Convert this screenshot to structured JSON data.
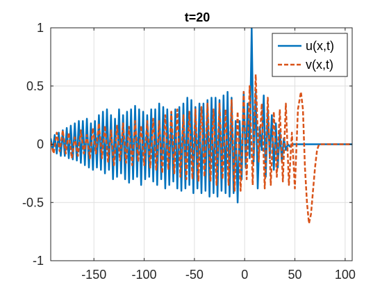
{
  "chart_data": {
    "type": "line",
    "title": "t=20",
    "xlabel": "",
    "ylabel": "",
    "xlim": [
      -193,
      107
    ],
    "ylim": [
      -1,
      1
    ],
    "xticks": [
      -150,
      -100,
      -50,
      0,
      50,
      100
    ],
    "yticks": [
      -1,
      -0.5,
      0,
      0.5,
      1
    ],
    "xtick_labels": [
      "-150",
      "-100",
      "-50",
      "0",
      "50",
      "100"
    ],
    "ytick_labels": [
      "-1",
      "-0.5",
      "0",
      "0.5",
      "1"
    ],
    "grid": true,
    "legend_position": "top-right",
    "series": [
      {
        "name": "u(x,t)",
        "color": "#0072BD",
        "style": "solid",
        "points": [
          [
            -193,
            0.05
          ],
          [
            -191,
            -0.05
          ],
          [
            -189,
            0.08
          ],
          [
            -187,
            -0.08
          ],
          [
            -185,
            0.1
          ],
          [
            -183,
            -0.1
          ],
          [
            -181,
            0.12
          ],
          [
            -179,
            -0.1
          ],
          [
            -177,
            0.14
          ],
          [
            -175,
            -0.12
          ],
          [
            -173,
            0.16
          ],
          [
            -171,
            -0.13
          ],
          [
            -169,
            0.18
          ],
          [
            -167,
            -0.14
          ],
          [
            -165,
            0.2
          ],
          [
            -163,
            -0.16
          ],
          [
            -161,
            0.2
          ],
          [
            -159,
            -0.18
          ],
          [
            -157,
            0.22
          ],
          [
            -155,
            -0.2
          ],
          [
            -153,
            0.18
          ],
          [
            -151,
            -0.22
          ],
          [
            -149,
            0.2
          ],
          [
            -147,
            -0.2
          ],
          [
            -145,
            0.25
          ],
          [
            -143,
            -0.22
          ],
          [
            -141,
            0.28
          ],
          [
            -139,
            -0.25
          ],
          [
            -137,
            0.3
          ],
          [
            -135,
            -0.22
          ],
          [
            -133,
            0.25
          ],
          [
            -131,
            -0.3
          ],
          [
            -129,
            0.22
          ],
          [
            -127,
            -0.28
          ],
          [
            -125,
            0.3
          ],
          [
            -123,
            -0.25
          ],
          [
            -121,
            0.25
          ],
          [
            -119,
            -0.3
          ],
          [
            -117,
            0.28
          ],
          [
            -115,
            -0.33
          ],
          [
            -113,
            0.3
          ],
          [
            -111,
            -0.3
          ],
          [
            -109,
            0.33
          ],
          [
            -107,
            -0.28
          ],
          [
            -105,
            0.3
          ],
          [
            -103,
            -0.35
          ],
          [
            -101,
            0.28
          ],
          [
            -99,
            -0.3
          ],
          [
            -97,
            0.25
          ],
          [
            -95,
            -0.28
          ],
          [
            -93,
            0.3
          ],
          [
            -91,
            -0.32
          ],
          [
            -89,
            0.3
          ],
          [
            -87,
            -0.35
          ],
          [
            -85,
            0.35
          ],
          [
            -83,
            -0.3
          ],
          [
            -81,
            0.32
          ],
          [
            -79,
            -0.38
          ],
          [
            -77,
            0.3
          ],
          [
            -75,
            -0.35
          ],
          [
            -73,
            0.28
          ],
          [
            -71,
            -0.32
          ],
          [
            -69,
            0.3
          ],
          [
            -67,
            -0.38
          ],
          [
            -65,
            0.32
          ],
          [
            -63,
            -0.4
          ],
          [
            -61,
            0.35
          ],
          [
            -59,
            -0.38
          ],
          [
            -57,
            0.4
          ],
          [
            -55,
            -0.35
          ],
          [
            -53,
            0.38
          ],
          [
            -51,
            -0.42
          ],
          [
            -49,
            0.32
          ],
          [
            -47,
            -0.38
          ],
          [
            -45,
            0.35
          ],
          [
            -43,
            -0.42
          ],
          [
            -41,
            0.35
          ],
          [
            -39,
            -0.4
          ],
          [
            -37,
            0.38
          ],
          [
            -35,
            -0.45
          ],
          [
            -33,
            0.4
          ],
          [
            -31,
            -0.42
          ],
          [
            -29,
            0.4
          ],
          [
            -27,
            -0.45
          ],
          [
            -25,
            0.38
          ],
          [
            -23,
            -0.4
          ],
          [
            -21,
            0.42
          ],
          [
            -19,
            -0.42
          ],
          [
            -17,
            0.45
          ],
          [
            -15,
            -0.45
          ],
          [
            -13,
            0.4
          ],
          [
            -11,
            -0.42
          ],
          [
            -9,
            0.2
          ],
          [
            -7,
            -0.5
          ],
          [
            -5,
            0.2
          ],
          [
            -3,
            -0.3
          ],
          [
            -1,
            0.45
          ],
          [
            1,
            -0.2
          ],
          [
            3,
            0.35
          ],
          [
            5,
            -0.12
          ],
          [
            7,
            1.0
          ],
          [
            9,
            -0.15
          ],
          [
            11,
            0.45
          ],
          [
            13,
            -0.38
          ],
          [
            15,
            0.15
          ],
          [
            17,
            -0.05
          ],
          [
            19,
            0.42
          ],
          [
            21,
            -0.28
          ],
          [
            23,
            0.3
          ],
          [
            25,
            -0.12
          ],
          [
            27,
            0.25
          ],
          [
            29,
            -0.22
          ],
          [
            31,
            0.18
          ],
          [
            33,
            -0.2
          ],
          [
            35,
            0.12
          ],
          [
            37,
            -0.15
          ],
          [
            39,
            0.05
          ],
          [
            41,
            -0.05
          ],
          [
            43,
            0.0
          ],
          [
            45,
            -0.02
          ],
          [
            47,
            0.0
          ],
          [
            50,
            0.0
          ],
          [
            55,
            0.0
          ],
          [
            60,
            0.0
          ],
          [
            70,
            0.0
          ],
          [
            80,
            0.0
          ],
          [
            90,
            0.0
          ],
          [
            100,
            0.0
          ],
          [
            107,
            0.0
          ]
        ]
      },
      {
        "name": "v(x,t)",
        "color": "#D95319",
        "style": "dashed",
        "points": [
          [
            -193,
            0.02
          ],
          [
            -190,
            -0.08
          ],
          [
            -187,
            0.1
          ],
          [
            -184,
            -0.06
          ],
          [
            -181,
            0.12
          ],
          [
            -178,
            -0.08
          ],
          [
            -175,
            0.1
          ],
          [
            -172,
            -0.12
          ],
          [
            -169,
            0.06
          ],
          [
            -166,
            -0.1
          ],
          [
            -163,
            0.12
          ],
          [
            -160,
            -0.08
          ],
          [
            -157,
            0.08
          ],
          [
            -154,
            -0.12
          ],
          [
            -151,
            0.14
          ],
          [
            -148,
            -0.08
          ],
          [
            -145,
            0.18
          ],
          [
            -142,
            -0.12
          ],
          [
            -139,
            0.16
          ],
          [
            -136,
            -0.15
          ],
          [
            -133,
            0.12
          ],
          [
            -130,
            -0.18
          ],
          [
            -127,
            0.16
          ],
          [
            -124,
            -0.14
          ],
          [
            -121,
            0.18
          ],
          [
            -118,
            -0.16
          ],
          [
            -115,
            0.15
          ],
          [
            -112,
            -0.18
          ],
          [
            -109,
            0.2
          ],
          [
            -106,
            -0.15
          ],
          [
            -103,
            0.16
          ],
          [
            -100,
            -0.18
          ],
          [
            -97,
            0.2
          ],
          [
            -94,
            -0.2
          ],
          [
            -91,
            0.22
          ],
          [
            -88,
            -0.22
          ],
          [
            -85,
            0.2
          ],
          [
            -82,
            -0.25
          ],
          [
            -79,
            0.25
          ],
          [
            -76,
            -0.22
          ],
          [
            -73,
            0.28
          ],
          [
            -70,
            -0.25
          ],
          [
            -67,
            0.3
          ],
          [
            -64,
            -0.28
          ],
          [
            -61,
            0.25
          ],
          [
            -58,
            -0.3
          ],
          [
            -55,
            0.28
          ],
          [
            -52,
            -0.3
          ],
          [
            -49,
            0.3
          ],
          [
            -46,
            -0.32
          ],
          [
            -43,
            0.32
          ],
          [
            -40,
            -0.28
          ],
          [
            -37,
            0.35
          ],
          [
            -34,
            -0.32
          ],
          [
            -31,
            0.3
          ],
          [
            -28,
            -0.35
          ],
          [
            -25,
            0.35
          ],
          [
            -22,
            -0.3
          ],
          [
            -19,
            0.3
          ],
          [
            -16,
            -0.35
          ],
          [
            -13,
            0.38
          ],
          [
            -10,
            -0.4
          ],
          [
            -7,
            0.28
          ],
          [
            -4,
            -0.4
          ],
          [
            -1,
            0.45
          ],
          [
            2,
            -0.3
          ],
          [
            5,
            0.5
          ],
          [
            8,
            -0.35
          ],
          [
            11,
            0.6
          ],
          [
            14,
            -0.15
          ],
          [
            17,
            0.35
          ],
          [
            20,
            -0.38
          ],
          [
            23,
            0.4
          ],
          [
            26,
            -0.35
          ],
          [
            29,
            0.28
          ],
          [
            32,
            -0.28
          ],
          [
            35,
            0.3
          ],
          [
            38,
            -0.32
          ],
          [
            41,
            0.35
          ],
          [
            44,
            -0.35
          ],
          [
            47,
            0.1
          ],
          [
            50,
            -0.38
          ],
          [
            53,
            0.3
          ],
          [
            56,
            0.45
          ],
          [
            58,
            0.3
          ],
          [
            60,
            -0.2
          ],
          [
            62,
            -0.5
          ],
          [
            64,
            -0.68
          ],
          [
            66,
            -0.6
          ],
          [
            68,
            -0.4
          ],
          [
            70,
            -0.2
          ],
          [
            72,
            -0.05
          ],
          [
            74,
            0.0
          ],
          [
            76,
            0.0
          ],
          [
            80,
            0.0
          ],
          [
            90,
            0.0
          ],
          [
            100,
            0.0
          ],
          [
            107,
            0.0
          ]
        ]
      }
    ]
  }
}
